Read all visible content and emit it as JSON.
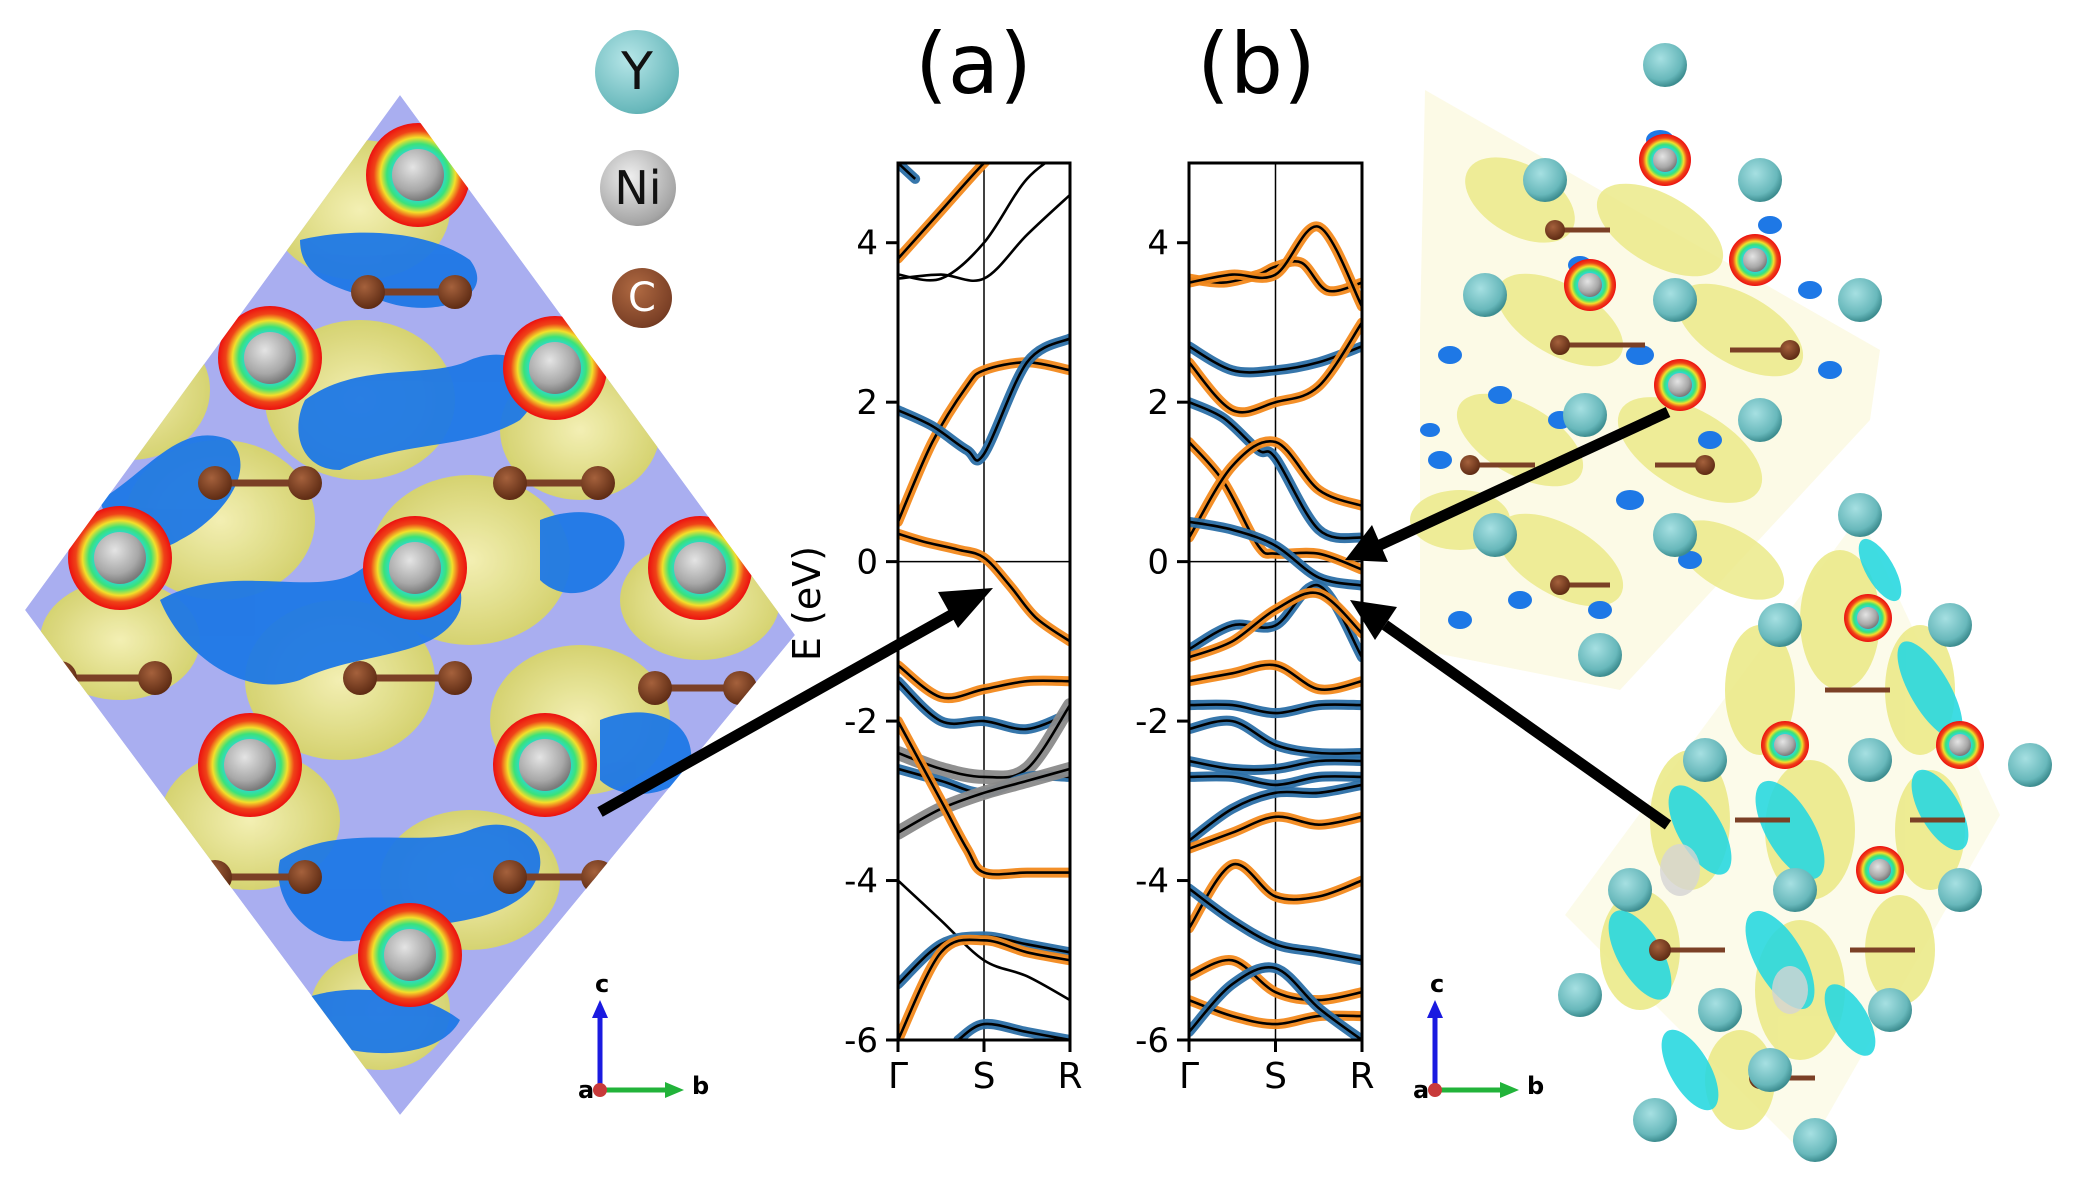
{
  "legend": {
    "y_label": "Y",
    "ni_label": "Ni",
    "c_label": "C",
    "y_color": "#6fc3c6",
    "ni_color": "#a5a5a5",
    "c_color": "#7b4026"
  },
  "panel_labels": {
    "a": "(a)",
    "b": "(b)"
  },
  "axes_triad": {
    "c": "c",
    "a": "a",
    "b": "b"
  },
  "colors": {
    "band_black": "#000000",
    "proj_orange": "#f2891c",
    "proj_blue": "#2b6fa6",
    "proj_gray": "#8a8a8a",
    "iso_yellow": "#ecea8a",
    "iso_blue": "#1e78e6",
    "iso_cyan": "#29d8e0",
    "bg_lavender": "#a9aef0"
  },
  "chart_data": [
    {
      "type": "line",
      "panel": "(a)",
      "ylabel": "E (eV)",
      "ylim": [
        -6,
        5
      ],
      "yticks": [
        "4",
        "2",
        "0",
        "-2",
        "-4",
        "-6"
      ],
      "xticks": [
        "Γ",
        "S",
        "R"
      ],
      "fermi_level": 0,
      "series": [
        {
          "proj": "orange",
          "values": [
            [
              0,
              3.8
            ],
            [
              0.5,
              4.4
            ],
            [
              1,
              5.0
            ],
            [
              1.4,
              5.4
            ]
          ]
        },
        {
          "proj": "none",
          "values": [
            [
              0,
              3.6
            ],
            [
              0.5,
              3.55
            ],
            [
              1,
              4.0
            ],
            [
              1.5,
              4.8
            ],
            [
              2,
              5.2
            ]
          ]
        },
        {
          "proj": "none",
          "values": [
            [
              0,
              3.55
            ],
            [
              0.5,
              3.6
            ],
            [
              1,
              3.55
            ],
            [
              1.5,
              4.1
            ],
            [
              2,
              4.6
            ]
          ]
        },
        {
          "proj": "blue",
          "values": [
            [
              0,
              5.0
            ],
            [
              0.2,
              4.8
            ]
          ]
        },
        {
          "proj": "orange",
          "values": [
            [
              0,
              0.5
            ],
            [
              0.4,
              1.5
            ],
            [
              0.8,
              2.2
            ],
            [
              1,
              2.4
            ],
            [
              1.5,
              2.5
            ],
            [
              2,
              2.4
            ]
          ]
        },
        {
          "proj": "blue",
          "values": [
            [
              0,
              1.9
            ],
            [
              0.4,
              1.7
            ],
            [
              0.8,
              1.4
            ],
            [
              1,
              1.35
            ],
            [
              1.5,
              2.5
            ],
            [
              2,
              2.8
            ]
          ]
        },
        {
          "proj": "orange",
          "values": [
            [
              0,
              0.35
            ],
            [
              0.3,
              0.25
            ],
            [
              0.7,
              0.15
            ],
            [
              1,
              0.05
            ],
            [
              1.3,
              -0.3
            ],
            [
              1.6,
              -0.7
            ],
            [
              2,
              -1.0
            ]
          ]
        },
        {
          "proj": "orange",
          "values": [
            [
              0,
              -1.3
            ],
            [
              0.5,
              -1.7
            ],
            [
              1,
              -1.6
            ],
            [
              1.5,
              -1.5
            ],
            [
              2,
              -1.5
            ]
          ]
        },
        {
          "proj": "blue",
          "values": [
            [
              0,
              -1.5
            ],
            [
              0.5,
              -2.0
            ],
            [
              1,
              -2.0
            ],
            [
              1.5,
              -2.1
            ],
            [
              2,
              -1.9
            ]
          ]
        },
        {
          "proj": "gray",
          "values": [
            [
              0,
              -2.4
            ],
            [
              0.5,
              -2.6
            ],
            [
              1,
              -2.7
            ],
            [
              1.5,
              -2.6
            ],
            [
              2,
              -1.8
            ]
          ]
        },
        {
          "proj": "blue",
          "values": [
            [
              0,
              -2.6
            ],
            [
              0.5,
              -2.75
            ],
            [
              1,
              -2.9
            ],
            [
              1.5,
              -2.7
            ],
            [
              2,
              -2.7
            ]
          ]
        },
        {
          "proj": "gray",
          "values": [
            [
              0,
              -3.4
            ],
            [
              0.5,
              -3.1
            ],
            [
              1,
              -2.9
            ],
            [
              1.5,
              -2.75
            ],
            [
              2,
              -2.6
            ]
          ]
        },
        {
          "proj": "orange",
          "values": [
            [
              0,
              -2.0
            ],
            [
              0.5,
              -3.0
            ],
            [
              0.8,
              -3.6
            ],
            [
              1,
              -3.9
            ],
            [
              1.5,
              -3.9
            ],
            [
              2,
              -3.9
            ]
          ]
        },
        {
          "proj": "black",
          "values": [
            [
              0,
              -4.0
            ],
            [
              0.5,
              -4.5
            ],
            [
              1,
              -5.0
            ],
            [
              1.5,
              -5.2
            ],
            [
              2,
              -5.5
            ]
          ]
        },
        {
          "proj": "blue",
          "values": [
            [
              0,
              -5.3
            ],
            [
              0.5,
              -4.8
            ],
            [
              1,
              -4.7
            ],
            [
              1.5,
              -4.8
            ],
            [
              2,
              -4.9
            ]
          ]
        },
        {
          "proj": "orange",
          "values": [
            [
              0,
              -6.0
            ],
            [
              0.5,
              -4.9
            ],
            [
              1,
              -4.75
            ],
            [
              1.5,
              -4.9
            ],
            [
              2,
              -5.0
            ]
          ]
        },
        {
          "proj": "blue",
          "values": [
            [
              0.7,
              -6.0
            ],
            [
              1,
              -5.8
            ],
            [
              1.5,
              -5.9
            ],
            [
              2,
              -6.0
            ]
          ]
        }
      ]
    },
    {
      "type": "line",
      "panel": "(b)",
      "ylabel": "",
      "ylim": [
        -6,
        5
      ],
      "yticks": [
        "4",
        "2",
        "0",
        "-2",
        "-4",
        "-6"
      ],
      "xticks": [
        "Γ",
        "S",
        "R"
      ],
      "fermi_level": 0,
      "series": [
        {
          "proj": "orange",
          "values": [
            [
              0,
              3.55
            ],
            [
              0.4,
              3.5
            ],
            [
              0.8,
              3.6
            ],
            [
              1,
              3.7
            ],
            [
              1.3,
              3.75
            ],
            [
              1.6,
              3.4
            ],
            [
              2,
              3.5
            ]
          ]
        },
        {
          "proj": "orange",
          "values": [
            [
              0,
              3.5
            ],
            [
              0.5,
              3.6
            ],
            [
              1,
              3.6
            ],
            [
              1.5,
              4.2
            ],
            [
              2,
              3.2
            ]
          ]
        },
        {
          "proj": "blue",
          "values": [
            [
              0,
              2.7
            ],
            [
              0.5,
              2.4
            ],
            [
              1,
              2.4
            ],
            [
              1.5,
              2.5
            ],
            [
              2,
              2.7
            ]
          ]
        },
        {
          "proj": "orange",
          "values": [
            [
              0,
              2.5
            ],
            [
              0.5,
              1.9
            ],
            [
              1,
              2.0
            ],
            [
              1.5,
              2.2
            ],
            [
              2,
              3.0
            ]
          ]
        },
        {
          "proj": "blue",
          "values": [
            [
              0,
              2.0
            ],
            [
              0.4,
              1.8
            ],
            [
              0.8,
              1.4
            ],
            [
              1,
              1.3
            ],
            [
              1.5,
              0.4
            ],
            [
              2,
              0.3
            ]
          ]
        },
        {
          "proj": "orange",
          "values": [
            [
              0,
              1.5
            ],
            [
              0.4,
              1.0
            ],
            [
              0.8,
              0.2
            ],
            [
              1,
              0.1
            ],
            [
              1.5,
              0.1
            ],
            [
              2,
              -0.1
            ]
          ]
        },
        {
          "proj": "orange",
          "values": [
            [
              0,
              0.3
            ],
            [
              0.5,
              1.2
            ],
            [
              1,
              1.5
            ],
            [
              1.5,
              0.9
            ],
            [
              2,
              0.7
            ]
          ]
        },
        {
          "proj": "blue",
          "values": [
            [
              0,
              0.5
            ],
            [
              0.5,
              0.4
            ],
            [
              1,
              0.2
            ],
            [
              1.5,
              -0.2
            ],
            [
              2,
              -0.3
            ]
          ]
        },
        {
          "proj": "blue",
          "values": [
            [
              0,
              -1.1
            ],
            [
              0.5,
              -0.8
            ],
            [
              1,
              -0.8
            ],
            [
              1.5,
              -0.3
            ],
            [
              2,
              -1.2
            ]
          ]
        },
        {
          "proj": "orange",
          "values": [
            [
              0,
              -1.2
            ],
            [
              0.5,
              -1.0
            ],
            [
              1,
              -0.6
            ],
            [
              1.5,
              -0.4
            ],
            [
              2,
              -0.9
            ]
          ]
        },
        {
          "proj": "orange",
          "values": [
            [
              0,
              -1.5
            ],
            [
              0.5,
              -1.4
            ],
            [
              1,
              -1.3
            ],
            [
              1.5,
              -1.6
            ],
            [
              2,
              -1.5
            ]
          ]
        },
        {
          "proj": "blue",
          "values": [
            [
              0,
              -1.8
            ],
            [
              0.5,
              -1.8
            ],
            [
              1,
              -1.9
            ],
            [
              1.5,
              -1.8
            ],
            [
              2,
              -1.8
            ]
          ]
        },
        {
          "proj": "blue",
          "values": [
            [
              0,
              -2.1
            ],
            [
              0.5,
              -2.0
            ],
            [
              1,
              -2.3
            ],
            [
              1.5,
              -2.4
            ],
            [
              2,
              -2.4
            ]
          ]
        },
        {
          "proj": "blue",
          "values": [
            [
              0,
              -2.5
            ],
            [
              0.5,
              -2.6
            ],
            [
              1,
              -2.6
            ],
            [
              1.5,
              -2.5
            ],
            [
              2,
              -2.5
            ]
          ]
        },
        {
          "proj": "blue",
          "values": [
            [
              0,
              -2.7
            ],
            [
              0.5,
              -2.7
            ],
            [
              1,
              -2.8
            ],
            [
              1.5,
              -2.7
            ],
            [
              2,
              -2.7
            ]
          ]
        },
        {
          "proj": "blue",
          "values": [
            [
              0,
              -3.5
            ],
            [
              0.5,
              -3.1
            ],
            [
              1,
              -2.9
            ],
            [
              1.5,
              -2.9
            ],
            [
              2,
              -2.8
            ]
          ]
        },
        {
          "proj": "orange",
          "values": [
            [
              0,
              -3.6
            ],
            [
              0.5,
              -3.4
            ],
            [
              1,
              -3.2
            ],
            [
              1.5,
              -3.3
            ],
            [
              2,
              -3.2
            ]
          ]
        },
        {
          "proj": "orange",
          "values": [
            [
              0,
              -4.6
            ],
            [
              0.5,
              -3.8
            ],
            [
              1,
              -4.2
            ],
            [
              1.5,
              -4.2
            ],
            [
              2,
              -4.0
            ]
          ]
        },
        {
          "proj": "blue",
          "values": [
            [
              0,
              -4.1
            ],
            [
              0.5,
              -4.5
            ],
            [
              1,
              -4.8
            ],
            [
              1.5,
              -4.9
            ],
            [
              2,
              -5.0
            ]
          ]
        },
        {
          "proj": "orange",
          "values": [
            [
              0,
              -5.2
            ],
            [
              0.5,
              -5.0
            ],
            [
              1,
              -5.4
            ],
            [
              1.5,
              -5.5
            ],
            [
              2,
              -5.4
            ]
          ]
        },
        {
          "proj": "orange",
          "values": [
            [
              0,
              -5.5
            ],
            [
              0.5,
              -5.7
            ],
            [
              1,
              -5.8
            ],
            [
              1.5,
              -5.7
            ],
            [
              2,
              -5.7
            ]
          ]
        },
        {
          "proj": "blue",
          "values": [
            [
              0,
              -5.9
            ],
            [
              0.5,
              -5.3
            ],
            [
              1,
              -5.1
            ],
            [
              1.5,
              -5.6
            ],
            [
              2,
              -6.0
            ]
          ]
        }
      ]
    }
  ]
}
